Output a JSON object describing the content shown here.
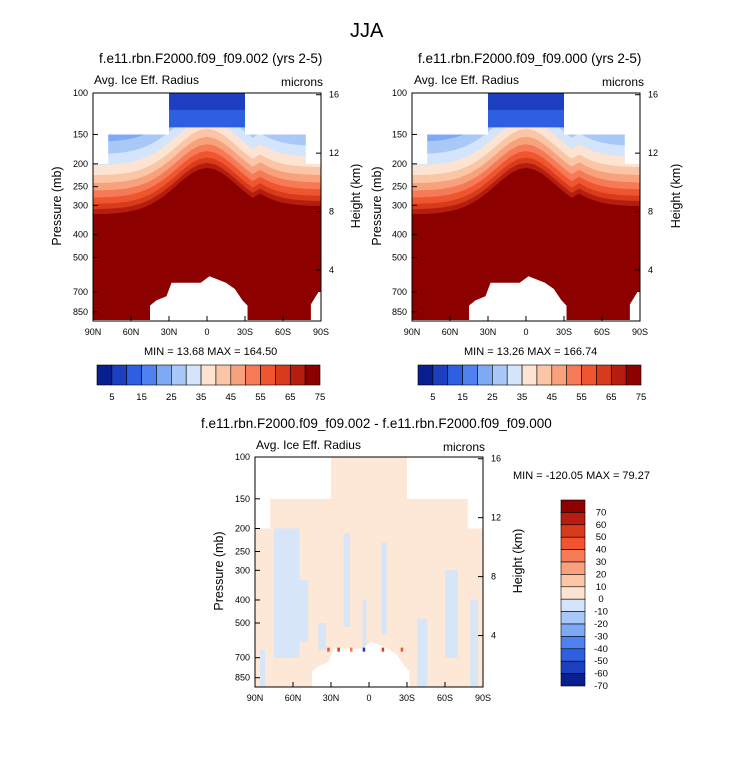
{
  "figure_title": "JJA",
  "colors": {
    "scale_a": [
      "#0a1f8f",
      "#1c3fbf",
      "#2e5fe0",
      "#4f82f0",
      "#7ea9f5",
      "#a9c8f7",
      "#d4e5fb",
      "#fde4d2",
      "#fbc6a6",
      "#f8a17d",
      "#f67a55",
      "#f0552f",
      "#d83a1c",
      "#b51e0e",
      "#8c0000"
    ],
    "scale_b": [
      "#0a1f8f",
      "#1c3fbf",
      "#2e5fe0",
      "#4f82f0",
      "#7ea9f5",
      "#a9c8f7",
      "#d4e5fb",
      "#fde4d2",
      "#fbc6a6",
      "#f8a17d",
      "#f67a55",
      "#f0552f",
      "#d83a1c",
      "#b51e0e",
      "#8c0000"
    ],
    "diff_bg": "#fde7d6",
    "diff_neg": "#d6e6f8"
  },
  "chart_data": [
    {
      "type": "contour",
      "title": "f.e11.rbn.F2000.f09_f09.002 (yrs 2-5)",
      "variable": "Avg. Ice Eff. Radius",
      "units": "microns",
      "xlabel": "",
      "ylabel": "Pressure (mb)",
      "y2label": "Height (km)",
      "x_ticks": [
        "90N",
        "60N",
        "30N",
        "0",
        "30S",
        "60S",
        "90S"
      ],
      "y_ticks": [
        "100",
        "150",
        "200",
        "250",
        "300",
        "400",
        "500",
        "700",
        "850"
      ],
      "y_tick_values": [
        100,
        150,
        200,
        250,
        300,
        400,
        500,
        700,
        850
      ],
      "y2_ticks": [
        "16",
        "12",
        "8",
        "4"
      ],
      "y2_tick_values": [
        16,
        12,
        8,
        4
      ],
      "min": 13.68,
      "max": 164.5,
      "stats_text": "MIN = 13.68   MAX = 164.50",
      "colorbar_labels": [
        "5",
        "15",
        "25",
        "35",
        "45",
        "55",
        "65",
        "75"
      ],
      "colorbar_levels": [
        5,
        10,
        15,
        20,
        25,
        30,
        35,
        40,
        45,
        50,
        55,
        60,
        65,
        70,
        75
      ]
    },
    {
      "type": "contour",
      "title": "f.e11.rbn.F2000.f09_f09.000 (yrs 2-5)",
      "variable": "Avg. Ice Eff. Radius",
      "units": "microns",
      "xlabel": "",
      "ylabel": "Pressure (mb)",
      "y2label": "Height (km)",
      "x_ticks": [
        "90N",
        "60N",
        "30N",
        "0",
        "30S",
        "60S",
        "90S"
      ],
      "y_ticks": [
        "100",
        "150",
        "200",
        "250",
        "300",
        "400",
        "500",
        "700",
        "850"
      ],
      "y_tick_values": [
        100,
        150,
        200,
        250,
        300,
        400,
        500,
        700,
        850
      ],
      "y2_ticks": [
        "16",
        "12",
        "8",
        "4"
      ],
      "y2_tick_values": [
        16,
        12,
        8,
        4
      ],
      "min": 13.26,
      "max": 166.74,
      "stats_text": "MIN = 13.26   MAX = 166.74",
      "colorbar_labels": [
        "5",
        "15",
        "25",
        "35",
        "45",
        "55",
        "65",
        "75"
      ],
      "colorbar_levels": [
        5,
        10,
        15,
        20,
        25,
        30,
        35,
        40,
        45,
        50,
        55,
        60,
        65,
        70,
        75
      ]
    },
    {
      "type": "contour",
      "title": "f.e11.rbn.F2000.f09_f09.002 - f.e11.rbn.F2000.f09_f09.000",
      "variable": "Avg. Ice Eff. Radius",
      "units": "microns",
      "xlabel": "",
      "ylabel": "Pressure (mb)",
      "y2label": "Height (km)",
      "x_ticks": [
        "90N",
        "60N",
        "30N",
        "0",
        "30S",
        "60S",
        "90S"
      ],
      "y_ticks": [
        "100",
        "150",
        "200",
        "250",
        "300",
        "400",
        "500",
        "700",
        "850"
      ],
      "y_tick_values": [
        100,
        150,
        200,
        250,
        300,
        400,
        500,
        700,
        850
      ],
      "y2_ticks": [
        "16",
        "12",
        "8",
        "4"
      ],
      "y2_tick_values": [
        16,
        12,
        8,
        4
      ],
      "min": -120.05,
      "max": 79.27,
      "stats_text": "MIN = -120.05   MAX = 79.27",
      "colorbar_labels": [
        "70",
        "60",
        "50",
        "40",
        "30",
        "20",
        "10",
        "0",
        "-10",
        "-20",
        "-30",
        "-40",
        "-50",
        "-60",
        "-70"
      ],
      "colorbar_levels": [
        70,
        60,
        50,
        40,
        30,
        20,
        10,
        0,
        -10,
        -20,
        -30,
        -40,
        -50,
        -60,
        -70
      ]
    }
  ]
}
